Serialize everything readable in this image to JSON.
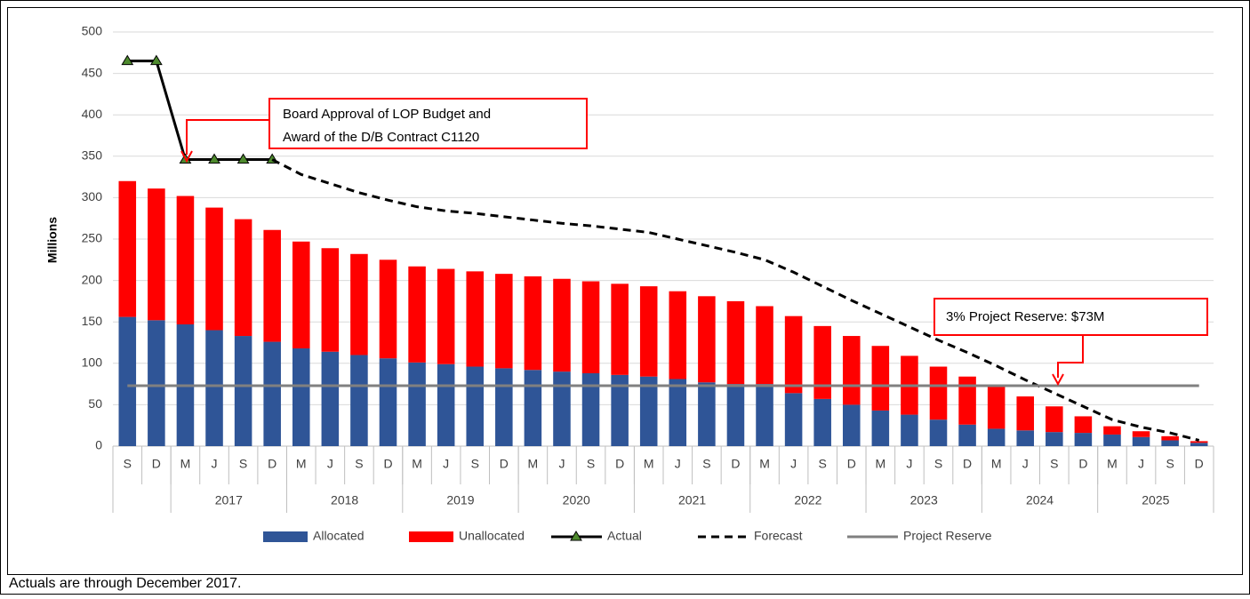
{
  "chart_data": {
    "type": "bar",
    "ylabel": "Millions",
    "ylim": [
      0,
      500
    ],
    "yticks": [
      0,
      50,
      100,
      150,
      200,
      250,
      300,
      350,
      400,
      450,
      500
    ],
    "grid": true,
    "categories": [
      "S",
      "D",
      "M",
      "J",
      "S",
      "D",
      "M",
      "J",
      "S",
      "D",
      "M",
      "J",
      "S",
      "D",
      "M",
      "J",
      "S",
      "D",
      "M",
      "J",
      "S",
      "D",
      "M",
      "J",
      "S",
      "D",
      "M",
      "J",
      "S",
      "D",
      "M",
      "J",
      "S",
      "D",
      "M",
      "J",
      "S",
      "D"
    ],
    "groups": [
      null,
      "2017",
      "2018",
      "2019",
      "2020",
      "2021",
      "2022",
      "2023",
      "2024",
      "2025"
    ],
    "group_sizes": [
      2,
      4,
      4,
      4,
      4,
      4,
      4,
      4,
      4,
      4
    ],
    "series": [
      {
        "name": "Allocated",
        "kind": "bar",
        "color": "#2f5597",
        "values": [
          156,
          152,
          147,
          140,
          133,
          126,
          118,
          114,
          110,
          106,
          101,
          99,
          96,
          94,
          92,
          90,
          88,
          86,
          84,
          81,
          77,
          75,
          75,
          64,
          57,
          50,
          43,
          38,
          32,
          26,
          21,
          19,
          17,
          16,
          14,
          11,
          7,
          4
        ]
      },
      {
        "name": "Unallocated",
        "kind": "bar",
        "color": "#ff0000",
        "values": [
          164,
          159,
          155,
          148,
          141,
          135,
          129,
          125,
          122,
          119,
          116,
          115,
          115,
          114,
          113,
          112,
          111,
          110,
          109,
          106,
          104,
          100,
          94,
          93,
          88,
          83,
          78,
          71,
          64,
          58,
          52,
          41,
          31,
          20,
          10,
          7,
          5,
          2
        ]
      },
      {
        "name": "Actual",
        "kind": "line",
        "color": "#000000",
        "marker": "triangle",
        "marker_color": "#4e8a2e",
        "values": [
          465,
          465,
          346,
          346,
          346,
          346,
          null,
          null,
          null,
          null,
          null,
          null,
          null,
          null,
          null,
          null,
          null,
          null,
          null,
          null,
          null,
          null,
          null,
          null,
          null,
          null,
          null,
          null,
          null,
          null,
          null,
          null,
          null,
          null,
          null,
          null,
          null,
          null
        ]
      },
      {
        "name": "Forecast",
        "kind": "line",
        "color": "#000000",
        "dashed": true,
        "values": [
          null,
          null,
          null,
          null,
          null,
          346,
          328,
          317,
          306,
          297,
          289,
          284,
          281,
          277,
          273,
          269,
          266,
          262,
          258,
          250,
          242,
          234,
          225,
          210,
          193,
          176,
          160,
          144,
          128,
          113,
          97,
          80,
          64,
          48,
          32,
          23,
          16,
          7
        ]
      },
      {
        "name": "Project Reserve",
        "kind": "line",
        "color": "#808080",
        "values": [
          73,
          73,
          73,
          73,
          73,
          73,
          73,
          73,
          73,
          73,
          73,
          73,
          73,
          73,
          73,
          73,
          73,
          73,
          73,
          73,
          73,
          73,
          73,
          73,
          73,
          73,
          73,
          73,
          73,
          73,
          73,
          73,
          73,
          73,
          73,
          73,
          73,
          73
        ]
      }
    ],
    "annotations": [
      {
        "lines": [
          "Board Approval of LOP Budget and",
          "Award  of the D/B Contract C1120"
        ]
      },
      {
        "lines": [
          "3% Project Reserve: $73M"
        ]
      }
    ],
    "note": "Actuals are through December 2017."
  }
}
